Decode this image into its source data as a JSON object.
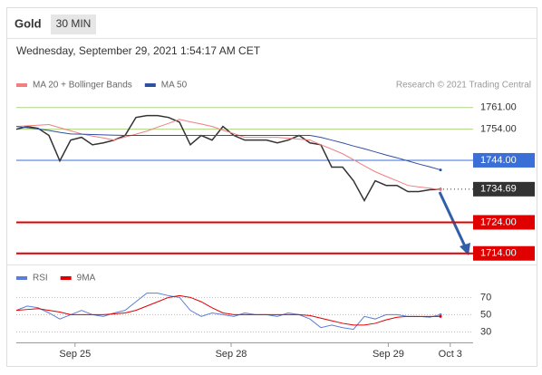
{
  "chart_data": [
    {
      "type": "line",
      "title": "Gold",
      "interval": "30 MIN",
      "subtitle": "Wednesday, September 29, 2021 1:54:17 AM CET",
      "note": "Research © 2021 Trading Central",
      "xlim": [
        0,
        42
      ],
      "xticks": [
        {
          "value": 5.4,
          "label": "Sep 25"
        },
        {
          "value": 19.75,
          "label": "Sep 28"
        },
        {
          "value": 34.2,
          "label": "Sep 29"
        },
        {
          "value": 39.9,
          "label": "Oct 3"
        }
      ],
      "ylim": [
        1711,
        1765
      ],
      "yticks": [
        {
          "value": 1761,
          "label": "1761.00"
        },
        {
          "value": 1754,
          "label": "1754.00"
        },
        {
          "value": 1744,
          "label": "1744.00"
        },
        1734.69,
        {
          "value": 1724,
          "label": "1724.00"
        },
        {
          "value": 1714,
          "label": "1714.00"
        }
      ],
      "ytick_colors": [
        "#8bc34a",
        "#8bc34a",
        "#3a6fd8",
        "#333333",
        "#e00000",
        "#e00000"
      ],
      "ytick_styles": [
        "thin",
        "thin",
        "solid",
        "dotted",
        "bold",
        "bold"
      ],
      "series": [
        {
          "color": "#333333",
          "values": [
            1754.0,
            1754.9,
            1754.3,
            1752.0,
            1743.8,
            1750.5,
            1751.4,
            1749.0,
            1749.6,
            1750.5,
            1752.0,
            1757.8,
            1758.4,
            1758.4,
            1757.8,
            1756.3,
            1749.0,
            1752.0,
            1750.5,
            1754.9,
            1752.0,
            1750.5,
            1750.5,
            1750.5,
            1749.6,
            1750.5,
            1752.0,
            1749.6,
            1749.0,
            1741.8,
            1741.8,
            1737.4,
            1731.0,
            1737.4,
            1735.9,
            1735.9,
            1733.9,
            1733.9,
            1734.5,
            1734.69
          ]
        },
        {
          "name": "MA 20 + Bollinger Bands",
          "color": "#f08080",
          "values": [
            1754.9,
            1755.1,
            1755.3,
            1755.5,
            1754.5,
            1753.5,
            1752.5,
            1751.8,
            1751.2,
            1750.5,
            1751.5,
            1752.4,
            1753.4,
            1754.7,
            1755.9,
            1757.2,
            1756.4,
            1755.7,
            1754.9,
            1753.7,
            1752.6,
            1751.4,
            1751.4,
            1751.4,
            1751.4,
            1751.1,
            1750.8,
            1750.5,
            1749.0,
            1747.6,
            1746.1,
            1744.2,
            1742.2,
            1740.3,
            1738.8,
            1737.4,
            1735.9,
            1735.4,
            1735.0,
            1734.5
          ]
        },
        {
          "name": "MA 50",
          "color": "#2f4f9f",
          "values": [
            1754.9,
            1754.5,
            1754.1,
            1753.6,
            1753.0,
            1752.5,
            1752.4,
            1752.3,
            1752.2,
            1752.1,
            1752.0,
            1752.0,
            1752.0,
            1752.0,
            1752.0,
            1752.0,
            1752.0,
            1752.0,
            1752.0,
            1752.0,
            1752.0,
            1752.0,
            1752.0,
            1752.0,
            1752.0,
            1752.0,
            1752.0,
            1752.0,
            1751.4,
            1750.5,
            1749.6,
            1748.6,
            1747.7,
            1746.7,
            1745.7,
            1744.8,
            1743.8,
            1742.8,
            1741.9,
            1740.9
          ]
        }
      ]
    },
    {
      "type": "line",
      "xlim": [
        0,
        42
      ],
      "ylim": [
        20,
        84
      ],
      "yticks": [
        70,
        50,
        30
      ],
      "series": [
        {
          "name": "RSI",
          "color": "#5b7fd6",
          "values": [
            55,
            60,
            58,
            52,
            45,
            50,
            55,
            50,
            48,
            52,
            55,
            65,
            75,
            75,
            72,
            70,
            55,
            48,
            52,
            50,
            48,
            52,
            50,
            50,
            48,
            52,
            50,
            45,
            35,
            38,
            35,
            33,
            48,
            45,
            50,
            50,
            48,
            48,
            47,
            50
          ]
        },
        {
          "name": "9MA",
          "color": "#e00000",
          "values": [
            55,
            56,
            57,
            55,
            53,
            50,
            50,
            50,
            50,
            51,
            52,
            55,
            60,
            65,
            70,
            72,
            70,
            65,
            58,
            52,
            50,
            50,
            50,
            50,
            50,
            50,
            50,
            49,
            46,
            43,
            40,
            38,
            38,
            40,
            44,
            47,
            48,
            48,
            48,
            48
          ]
        }
      ]
    }
  ]
}
